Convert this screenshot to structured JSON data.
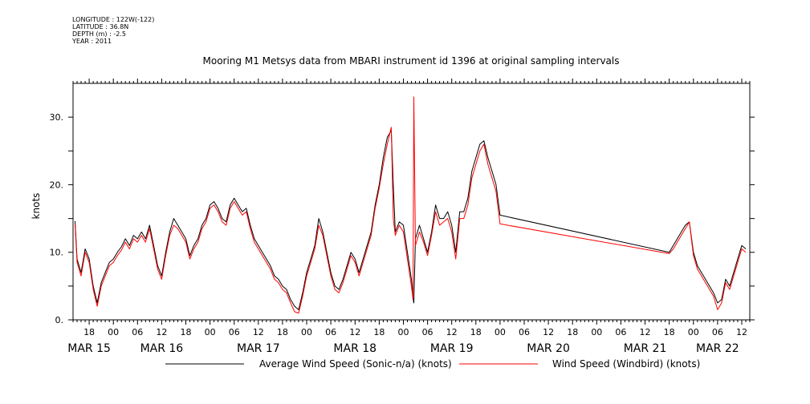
{
  "meta": {
    "longitude": "LONGITUDE : 122W(-122)",
    "latitude": "LATITUDE : 36.8N",
    "depth": "DEPTH (m) : -2.5",
    "year": "YEAR : 2011"
  },
  "chart_data": {
    "type": "line",
    "title": "Mooring M1 Metsys data from MBARI instrument id 1396 at original sampling intervals",
    "ylabel": "knots",
    "xlabel": "",
    "ylim": [
      0,
      35
    ],
    "yticks": [
      0,
      10,
      20,
      30
    ],
    "ytick_labels": [
      "0.",
      "10.",
      "20.",
      "30."
    ],
    "xlim_hours": [
      -10,
      158
    ],
    "x_unit": "hours from 00 MAR 15 2011",
    "hour_ticks": [
      {
        "h": -6,
        "label": "18"
      },
      {
        "h": 0,
        "label": "00"
      },
      {
        "h": 6,
        "label": "06"
      },
      {
        "h": 12,
        "label": "12"
      },
      {
        "h": 18,
        "label": "18"
      },
      {
        "h": 24,
        "label": "00"
      },
      {
        "h": 30,
        "label": "06"
      },
      {
        "h": 36,
        "label": "12"
      },
      {
        "h": 42,
        "label": "18"
      },
      {
        "h": 48,
        "label": "00"
      },
      {
        "h": 54,
        "label": "06"
      },
      {
        "h": 60,
        "label": "12"
      },
      {
        "h": 66,
        "label": "18"
      },
      {
        "h": 72,
        "label": "00"
      },
      {
        "h": 78,
        "label": "06"
      },
      {
        "h": 84,
        "label": "12"
      },
      {
        "h": 90,
        "label": "18"
      },
      {
        "h": 96,
        "label": "00"
      },
      {
        "h": 102,
        "label": "06"
      },
      {
        "h": 108,
        "label": "12"
      },
      {
        "h": 114,
        "label": "18"
      },
      {
        "h": 120,
        "label": "00"
      },
      {
        "h": 126,
        "label": "06"
      },
      {
        "h": 132,
        "label": "12"
      },
      {
        "h": 138,
        "label": "18"
      },
      {
        "h": 144,
        "label": "00"
      },
      {
        "h": 150,
        "label": "06"
      },
      {
        "h": 156,
        "label": "12"
      }
    ],
    "day_labels": [
      {
        "h": -6,
        "label": "MAR 15"
      },
      {
        "h": 12,
        "label": "MAR 16"
      },
      {
        "h": 36,
        "label": "MAR 17"
      },
      {
        "h": 60,
        "label": "MAR 18"
      },
      {
        "h": 84,
        "label": "MAR 19"
      },
      {
        "h": 108,
        "label": "MAR 20"
      },
      {
        "h": 132,
        "label": "MAR 21"
      },
      {
        "h": 150,
        "label": "MAR 22"
      }
    ],
    "legend": {
      "placement": "bottom"
    },
    "series": [
      {
        "name": "Average Wind Speed (Sonic-n/a) (knots)",
        "color": "#000000",
        "points": [
          [
            -9.5,
            14.6
          ],
          [
            -9,
            9
          ],
          [
            -8,
            7
          ],
          [
            -7,
            10.5
          ],
          [
            -6,
            9
          ],
          [
            -5,
            5
          ],
          [
            -4,
            2.5
          ],
          [
            -3,
            5.5
          ],
          [
            -2,
            7
          ],
          [
            -1,
            8.5
          ],
          [
            0,
            9
          ],
          [
            1,
            10
          ],
          [
            2,
            10.8
          ],
          [
            3,
            12
          ],
          [
            4,
            11
          ],
          [
            5,
            12.5
          ],
          [
            6,
            12
          ],
          [
            7,
            13
          ],
          [
            8,
            12
          ],
          [
            9,
            14
          ],
          [
            10,
            11
          ],
          [
            11,
            8
          ],
          [
            12,
            6.5
          ],
          [
            13,
            10
          ],
          [
            14,
            13
          ],
          [
            15,
            15
          ],
          [
            16,
            14
          ],
          [
            17,
            13
          ],
          [
            18,
            12
          ],
          [
            19,
            9.5
          ],
          [
            20,
            11
          ],
          [
            21,
            12
          ],
          [
            22,
            14
          ],
          [
            23,
            15
          ],
          [
            24,
            17
          ],
          [
            25,
            17.5
          ],
          [
            26,
            16.5
          ],
          [
            27,
            15
          ],
          [
            28,
            14.5
          ],
          [
            29,
            17
          ],
          [
            30,
            18
          ],
          [
            31,
            17
          ],
          [
            32,
            16
          ],
          [
            33,
            16.5
          ],
          [
            34,
            14
          ],
          [
            35,
            12
          ],
          [
            36,
            11
          ],
          [
            37,
            10
          ],
          [
            38,
            9
          ],
          [
            39,
            8
          ],
          [
            40,
            6.5
          ],
          [
            41,
            6
          ],
          [
            42,
            5
          ],
          [
            43,
            4.5
          ],
          [
            44,
            3
          ],
          [
            45,
            2
          ],
          [
            46,
            1.5
          ],
          [
            47,
            4
          ],
          [
            48,
            7
          ],
          [
            49,
            9
          ],
          [
            50,
            11
          ],
          [
            51,
            15
          ],
          [
            52,
            13
          ],
          [
            53,
            10
          ],
          [
            54,
            7
          ],
          [
            55,
            5
          ],
          [
            56,
            4.5
          ],
          [
            57,
            6
          ],
          [
            58,
            8
          ],
          [
            59,
            10
          ],
          [
            60,
            9
          ],
          [
            61,
            7
          ],
          [
            62,
            9
          ],
          [
            63,
            11
          ],
          [
            64,
            13
          ],
          [
            65,
            17
          ],
          [
            66,
            20
          ],
          [
            67,
            24
          ],
          [
            68,
            27
          ],
          [
            69,
            28
          ],
          [
            69.5,
            20
          ],
          [
            70,
            13
          ],
          [
            71,
            14.5
          ],
          [
            72,
            14
          ],
          [
            73,
            10
          ],
          [
            74,
            6
          ],
          [
            74.4,
            3.2
          ],
          [
            74.6,
            2.5
          ],
          [
            75,
            12
          ],
          [
            76,
            14
          ],
          [
            77,
            12
          ],
          [
            78,
            10
          ],
          [
            79,
            13
          ],
          [
            80,
            17
          ],
          [
            81,
            15
          ],
          [
            82,
            15
          ],
          [
            83,
            16
          ],
          [
            84,
            14
          ],
          [
            85,
            10
          ],
          [
            86,
            16
          ],
          [
            87,
            16
          ],
          [
            88,
            18
          ],
          [
            89,
            22
          ],
          [
            90,
            24
          ],
          [
            91,
            26
          ],
          [
            92,
            26.5
          ],
          [
            93,
            24
          ],
          [
            94,
            22
          ],
          [
            95,
            20
          ],
          [
            96,
            15.5
          ],
          [
            138,
            10
          ],
          [
            139,
            11
          ],
          [
            140,
            12
          ],
          [
            141,
            13
          ],
          [
            142,
            14
          ],
          [
            143,
            14.5
          ],
          [
            144,
            10
          ],
          [
            145,
            8
          ],
          [
            146,
            7
          ],
          [
            147,
            6
          ],
          [
            148,
            5
          ],
          [
            149,
            4
          ],
          [
            150,
            2.5
          ],
          [
            151,
            3
          ],
          [
            152,
            6
          ],
          [
            153,
            5
          ],
          [
            154,
            7
          ],
          [
            155,
            9
          ],
          [
            156,
            11
          ],
          [
            157,
            10.5
          ]
        ]
      },
      {
        "name": "Wind Speed (Windbird) (knots)",
        "color": "#ff0000",
        "points": [
          [
            -9.5,
            14.2
          ],
          [
            -9,
            8.5
          ],
          [
            -8,
            6.5
          ],
          [
            -7,
            10
          ],
          [
            -6,
            8.5
          ],
          [
            -5,
            4.5
          ],
          [
            -4,
            2
          ],
          [
            -3,
            5
          ],
          [
            -2,
            6.5
          ],
          [
            -1,
            8
          ],
          [
            0,
            8.5
          ],
          [
            1,
            9.5
          ],
          [
            2,
            10.3
          ],
          [
            3,
            11.5
          ],
          [
            4,
            10.5
          ],
          [
            5,
            12
          ],
          [
            6,
            11.5
          ],
          [
            7,
            12.5
          ],
          [
            8,
            11.5
          ],
          [
            9,
            13.5
          ],
          [
            10,
            10.5
          ],
          [
            11,
            7.5
          ],
          [
            12,
            6
          ],
          [
            13,
            9.5
          ],
          [
            14,
            12.5
          ],
          [
            15,
            14
          ],
          [
            16,
            13.5
          ],
          [
            17,
            12.5
          ],
          [
            18,
            11.5
          ],
          [
            19,
            9
          ],
          [
            20,
            10.5
          ],
          [
            21,
            11.5
          ],
          [
            22,
            13.5
          ],
          [
            23,
            14.5
          ],
          [
            24,
            16.5
          ],
          [
            25,
            17
          ],
          [
            26,
            16
          ],
          [
            27,
            14.5
          ],
          [
            28,
            14
          ],
          [
            29,
            16.5
          ],
          [
            30,
            17.5
          ],
          [
            31,
            16.5
          ],
          [
            32,
            15.5
          ],
          [
            33,
            16
          ],
          [
            34,
            13.5
          ],
          [
            35,
            11.5
          ],
          [
            36,
            10.5
          ],
          [
            37,
            9.5
          ],
          [
            38,
            8.5
          ],
          [
            39,
            7.5
          ],
          [
            40,
            6
          ],
          [
            41,
            5.5
          ],
          [
            42,
            4.5
          ],
          [
            43,
            4
          ],
          [
            44,
            2.5
          ],
          [
            45,
            1.2
          ],
          [
            46,
            1
          ],
          [
            47,
            3.5
          ],
          [
            48,
            6.5
          ],
          [
            49,
            8.5
          ],
          [
            50,
            10.5
          ],
          [
            51,
            14
          ],
          [
            52,
            12.5
          ],
          [
            53,
            9.5
          ],
          [
            54,
            6.5
          ],
          [
            55,
            4.5
          ],
          [
            56,
            4
          ],
          [
            57,
            5.5
          ],
          [
            58,
            7.5
          ],
          [
            59,
            9.5
          ],
          [
            60,
            8.5
          ],
          [
            61,
            6.5
          ],
          [
            62,
            8.5
          ],
          [
            63,
            10.5
          ],
          [
            64,
            12.5
          ],
          [
            65,
            16.5
          ],
          [
            66,
            19.5
          ],
          [
            67,
            23
          ],
          [
            68,
            26
          ],
          [
            69,
            28.5
          ],
          [
            69.5,
            15
          ],
          [
            70,
            12.5
          ],
          [
            71,
            14
          ],
          [
            72,
            13
          ],
          [
            73,
            9
          ],
          [
            74,
            5
          ],
          [
            74.4,
            3
          ],
          [
            74.6,
            33
          ],
          [
            75,
            11
          ],
          [
            76,
            13
          ],
          [
            77,
            11.5
          ],
          [
            78,
            9.5
          ],
          [
            79,
            12.5
          ],
          [
            80,
            16
          ],
          [
            81,
            14
          ],
          [
            82,
            14.5
          ],
          [
            83,
            15
          ],
          [
            84,
            13
          ],
          [
            85,
            9
          ],
          [
            86,
            15
          ],
          [
            87,
            15
          ],
          [
            88,
            17
          ],
          [
            89,
            21
          ],
          [
            90,
            23
          ],
          [
            91,
            25
          ],
          [
            92,
            26
          ],
          [
            93,
            23
          ],
          [
            94,
            21
          ],
          [
            95,
            19
          ],
          [
            96,
            14.2
          ],
          [
            138,
            9.8
          ],
          [
            139,
            10.5
          ],
          [
            140,
            11.5
          ],
          [
            141,
            12.5
          ],
          [
            142,
            13.5
          ],
          [
            143,
            14.5
          ],
          [
            144,
            9.5
          ],
          [
            145,
            7.5
          ],
          [
            146,
            6.5
          ],
          [
            147,
            5.5
          ],
          [
            148,
            4.5
          ],
          [
            149,
            3.5
          ],
          [
            150,
            1.5
          ],
          [
            151,
            2.5
          ],
          [
            152,
            5.5
          ],
          [
            153,
            4.5
          ],
          [
            154,
            6.5
          ],
          [
            155,
            8.5
          ],
          [
            156,
            10.5
          ],
          [
            157,
            10
          ]
        ]
      }
    ]
  }
}
